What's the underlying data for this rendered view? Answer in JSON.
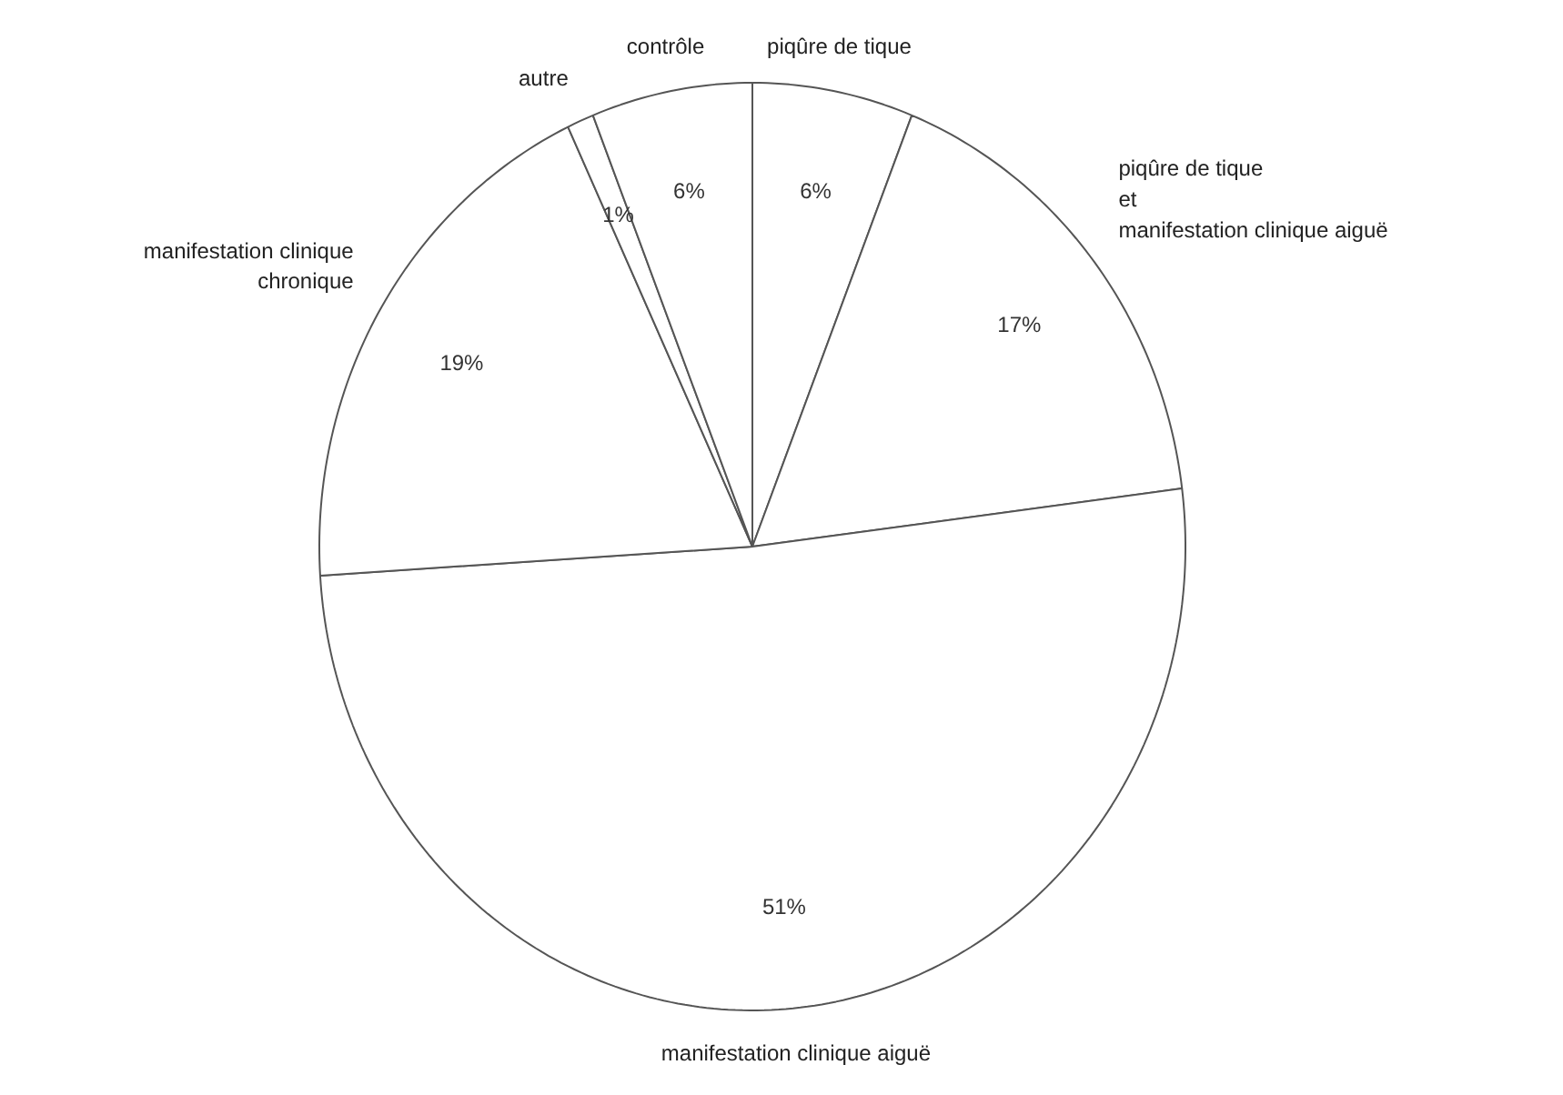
{
  "chart_data": {
    "type": "pie",
    "categories": [
      "piqûre de tique",
      "piqûre de tique\net\nmanifestation clinique aiguë",
      "manifestation clinique aiguë",
      "manifestation clinique\nchronique",
      "autre",
      "contrôle"
    ],
    "values": [
      6,
      17,
      51,
      19,
      1,
      6
    ],
    "value_labels": [
      "6%",
      "17%",
      "51%",
      "19%",
      "1%",
      "6%"
    ],
    "colors": [
      "#ffffff",
      "#ffffff",
      "#ffffff",
      "#ffffff",
      "#ffffff",
      "#ffffff"
    ]
  }
}
